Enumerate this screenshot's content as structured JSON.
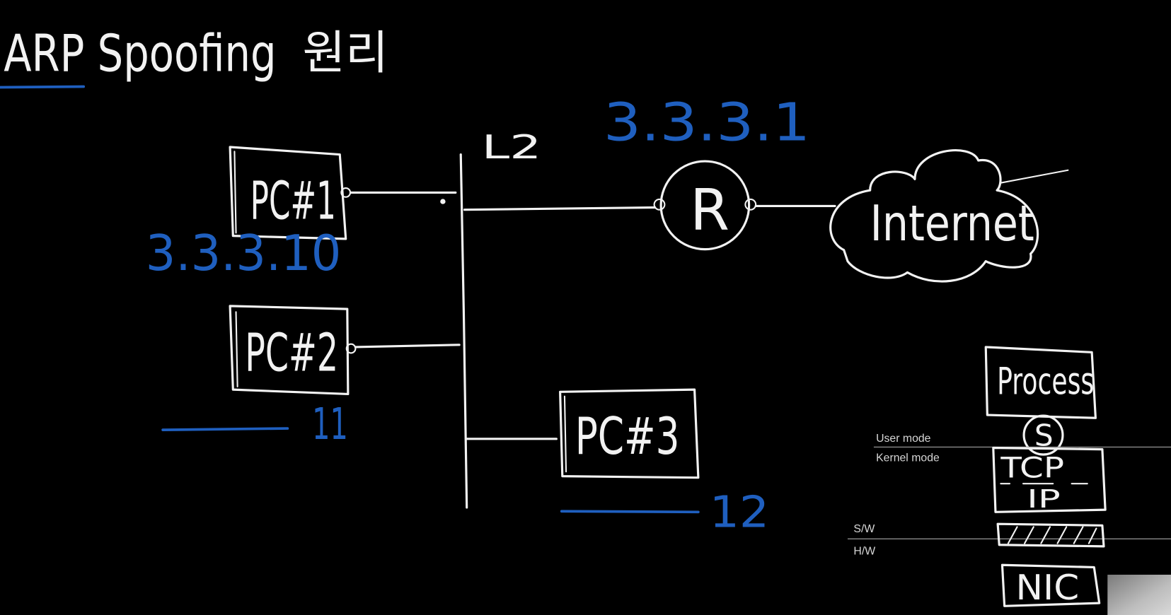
{
  "colors": {
    "background": "#000000",
    "chalk": "#f2f2f2",
    "blue_ink": "#1f5fbf",
    "typed_label": "#d6d6d6"
  },
  "title": {
    "main": "ARP Spoofing",
    "suffix": "원리"
  },
  "switch": {
    "label": "L2"
  },
  "router": {
    "label": "R",
    "ip": "3.3.3.1"
  },
  "internet": {
    "label": "Internet"
  },
  "hosts": [
    {
      "label": "PC#1",
      "ip": "3.3.3.10"
    },
    {
      "label": "PC#2",
      "ip": "11"
    },
    {
      "label": "PC#3",
      "ip": "12"
    }
  ],
  "stack": {
    "process": "Process",
    "socket": "S",
    "tcp": "TCP",
    "ip": "IP",
    "nic": "NIC",
    "user_mode": "User mode",
    "kernel_mode": "Kernel mode",
    "sw": "S/W",
    "hw": "H/W"
  }
}
